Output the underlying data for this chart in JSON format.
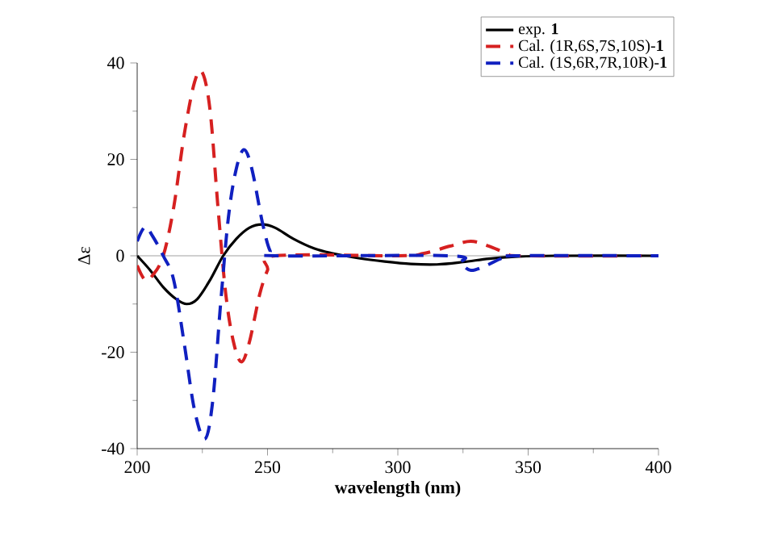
{
  "chart_data": {
    "type": "line",
    "xlabel": "**wavelength (nm)**",
    "ylabel": "Δε",
    "xlim": [
      200,
      400
    ],
    "ylim": [
      -40,
      40
    ],
    "xticks": [
      200,
      250,
      300,
      350,
      400
    ],
    "yticks": [
      -40,
      -20,
      0,
      20,
      40
    ],
    "grid": false,
    "legend": "top right",
    "ref_lines": [
      {
        "axis": "y",
        "value": 0,
        "color": "#a0a0a0"
      }
    ],
    "series": [
      {
        "name": "exp. **1**",
        "color": "#000000",
        "line_style": "solid",
        "x": [
          200,
          205,
          210,
          215,
          219,
          223,
          228,
          233,
          238,
          243,
          248,
          253,
          260,
          268,
          275,
          285,
          295,
          305,
          315,
          325,
          335,
          345,
          360,
          400
        ],
        "values": [
          0,
          -3,
          -6.5,
          -9,
          -10,
          -9,
          -5,
          0,
          3.5,
          5.8,
          6.5,
          5.8,
          3.5,
          1.5,
          0.5,
          -0.5,
          -1.2,
          -1.7,
          -1.8,
          -1.3,
          -0.6,
          -0.2,
          0,
          0
        ]
      },
      {
        "name": "Cal. (1R,6S,7S,10S)-**1**",
        "color": "#d62020",
        "line_style": "dashed",
        "x": [
          200,
          203,
          206,
          210,
          214,
          218,
          222,
          225,
          228,
          231,
          234,
          237,
          240,
          243,
          247,
          250,
          253,
          300,
          310,
          320,
          328,
          335,
          342,
          348,
          400
        ],
        "values": [
          -2,
          -5,
          -4,
          0,
          10,
          25,
          36,
          38,
          30,
          10,
          -8,
          -18,
          -22,
          -18,
          -8,
          -3,
          0,
          0,
          0.5,
          2,
          3,
          2,
          0.5,
          0,
          0
        ]
      },
      {
        "name": "Cal. (1S,6R,7R,10R)-**1**",
        "color": "#1020c0",
        "line_style": "dashed",
        "x": [
          200,
          203,
          206,
          210,
          214,
          218,
          222,
          226,
          229,
          232,
          235,
          238,
          241,
          244,
          248,
          251,
          254,
          320,
          324,
          328,
          334,
          340,
          345,
          400
        ],
        "values": [
          3,
          6,
          4,
          0,
          -5,
          -18,
          -32,
          -38,
          -30,
          -10,
          8,
          18,
          22,
          18,
          7,
          1,
          0,
          0,
          -1.5,
          -3,
          -2,
          -0.5,
          0,
          0
        ]
      }
    ]
  }
}
